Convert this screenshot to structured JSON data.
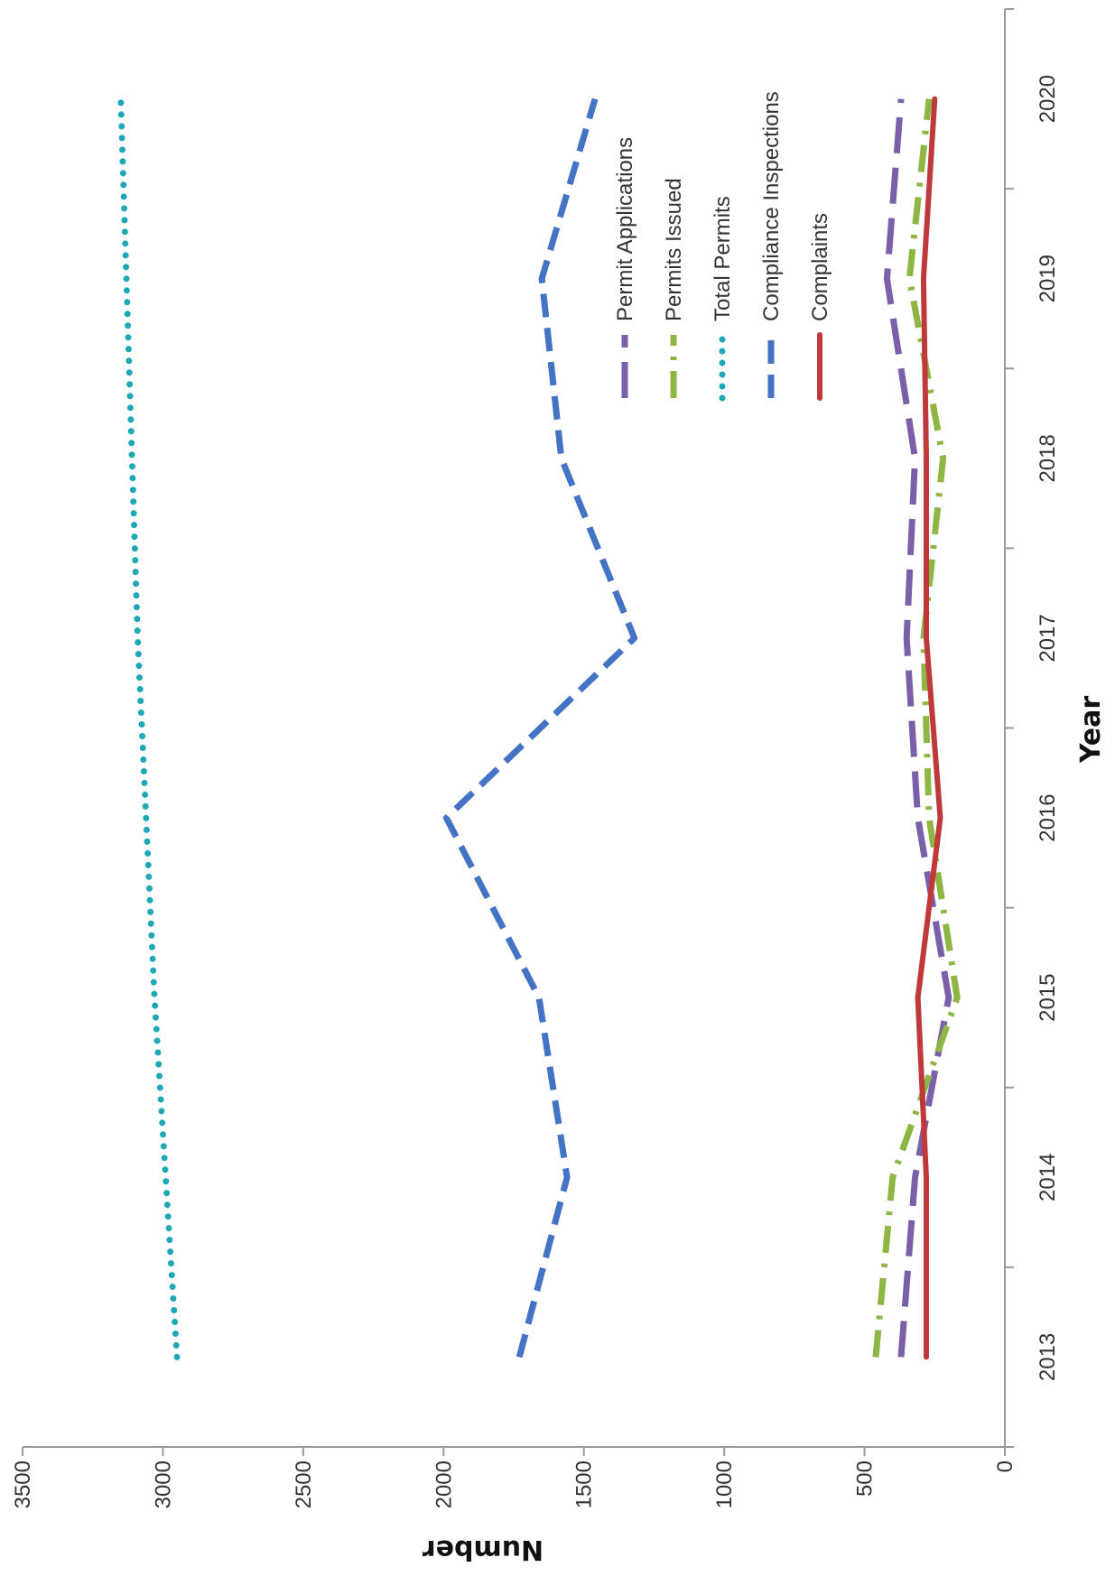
{
  "chart_data": {
    "type": "line",
    "orientation": "rotated 90 degrees clockwise (value axis along bottom, year axis along right)",
    "title": "",
    "xlabel": "Year",
    "ylabel": "Number",
    "categories": [
      "2013",
      "2014",
      "2015",
      "2016",
      "2017",
      "2018",
      "2019",
      "2020"
    ],
    "ylim": [
      0,
      3500
    ],
    "yticks": [
      "0",
      "500",
      "1000",
      "1500",
      "2000",
      "2500",
      "3000",
      "3500"
    ],
    "grid": false,
    "legend_position": "right (inside plot area)",
    "series": [
      {
        "name": "Permit Applications",
        "color": "#7b5fa8",
        "style": "long-dash",
        "values": [
          370,
          320,
          200,
          310,
          350,
          320,
          420,
          370
        ]
      },
      {
        "name": "Permits Issued",
        "color": "#8db645",
        "style": "dash-dot",
        "values": [
          460,
          400,
          170,
          270,
          290,
          220,
          340,
          270
        ]
      },
      {
        "name": "Total Permits",
        "color": "#1ea7b5",
        "style": "dotted",
        "values": [
          2950,
          2990,
          3030,
          3060,
          3090,
          3110,
          3130,
          3150
        ]
      },
      {
        "name": "Compliance Inspections",
        "color": "#4472c4",
        "style": "dashed",
        "values": [
          1730,
          1560,
          1660,
          1990,
          1320,
          1580,
          1650,
          1460
        ]
      },
      {
        "name": "Complaints",
        "color": "#c0393a",
        "style": "solid",
        "values": [
          280,
          280,
          310,
          230,
          280,
          280,
          290,
          250
        ]
      }
    ]
  }
}
